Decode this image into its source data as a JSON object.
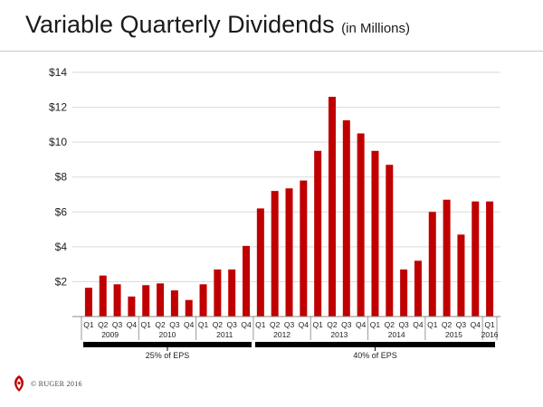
{
  "title": "Variable Quarterly Dividends",
  "subtitle": "(in Millions)",
  "footer": {
    "copyright": "© RUGER 2016",
    "logo_icon": "eagle-logo-icon"
  },
  "colors": {
    "bar": "#c00000",
    "grid": "#d9d9d9",
    "band": "#000000",
    "axis": "#888888"
  },
  "chart_data": {
    "type": "bar",
    "title": "Variable Quarterly Dividends",
    "subtitle": "(in Millions)",
    "xlabel": "",
    "ylabel": "",
    "ylim": [
      0,
      14
    ],
    "yticks": [
      2,
      4,
      6,
      8,
      10,
      12,
      14
    ],
    "ytick_labels": [
      "$2",
      "$4",
      "$6",
      "$8",
      "$10",
      "$12",
      "$14"
    ],
    "grid": true,
    "categories": [
      "Q1",
      "Q2",
      "Q3",
      "Q4",
      "Q1",
      "Q2",
      "Q3",
      "Q4",
      "Q1",
      "Q2",
      "Q3",
      "Q4",
      "Q1",
      "Q2",
      "Q3",
      "Q4",
      "Q1",
      "Q2",
      "Q3",
      "Q4",
      "Q1",
      "Q2",
      "Q3",
      "Q4",
      "Q1",
      "Q2",
      "Q3",
      "Q4",
      "Q1"
    ],
    "values": [
      1.65,
      2.35,
      1.85,
      1.15,
      1.8,
      1.9,
      1.5,
      0.95,
      1.85,
      2.7,
      2.7,
      4.05,
      6.2,
      7.2,
      7.35,
      7.8,
      9.5,
      12.6,
      11.25,
      10.5,
      9.5,
      8.7,
      2.7,
      3.2,
      6.0,
      6.7,
      4.7,
      6.6,
      6.6
    ],
    "years": [
      {
        "label": "2009",
        "count": 4
      },
      {
        "label": "2010",
        "count": 4
      },
      {
        "label": "2011",
        "count": 4
      },
      {
        "label": "2012",
        "count": 4
      },
      {
        "label": "2013",
        "count": 4
      },
      {
        "label": "2014",
        "count": 4
      },
      {
        "label": "2015",
        "count": 4
      },
      {
        "label": "2016",
        "count": 1
      }
    ],
    "payout_bands": [
      {
        "label": "25% of EPS",
        "from": 0,
        "to": 11
      },
      {
        "label": "40% of EPS",
        "from": 12,
        "to": 28
      }
    ]
  }
}
